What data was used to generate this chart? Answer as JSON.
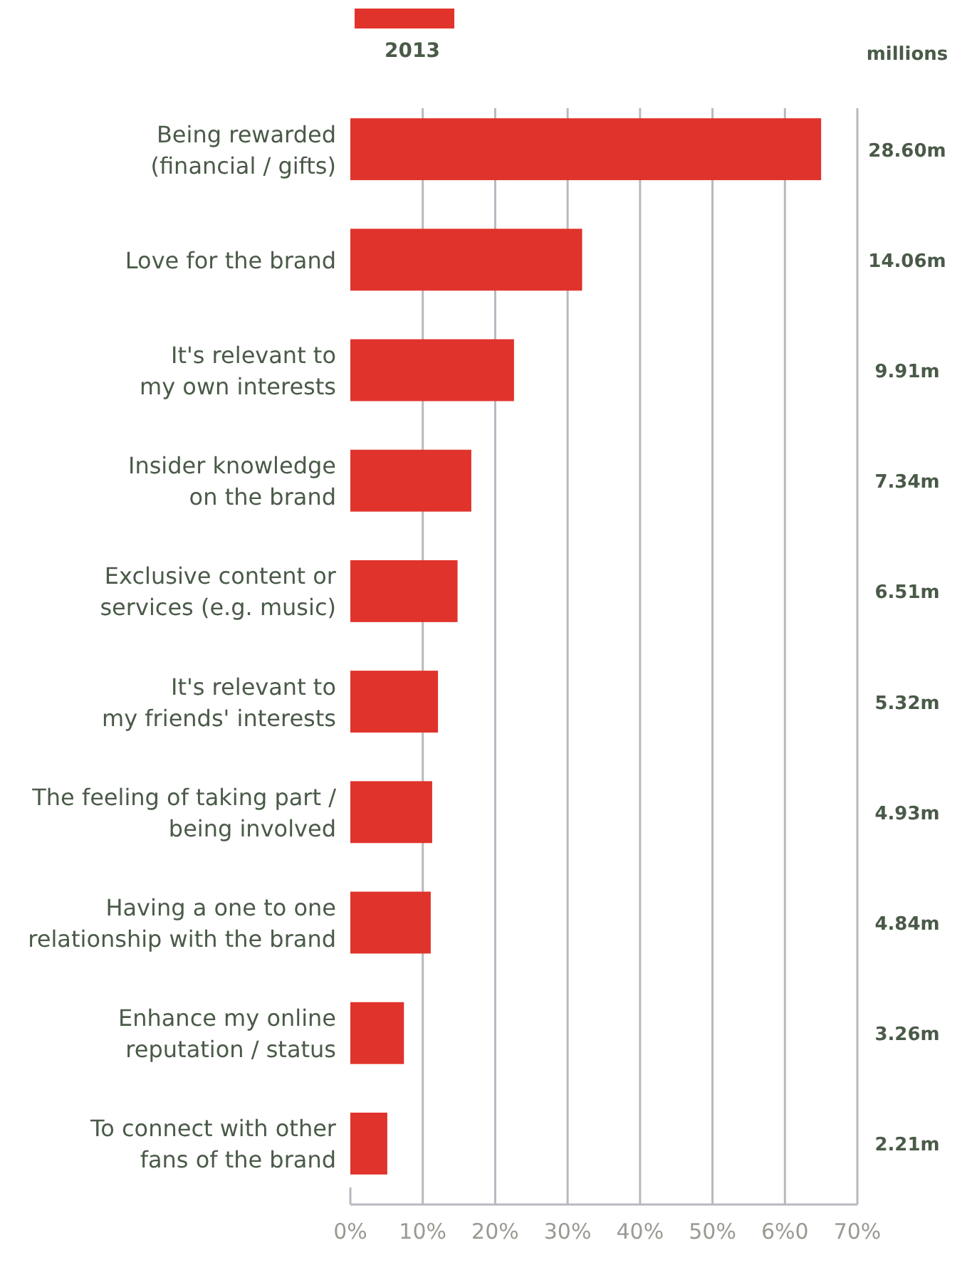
{
  "chart_data": {
    "type": "bar",
    "orientation": "horizontal",
    "categories": [
      "Being rewarded\n(financial / gifts)",
      "Love for the brand",
      "It's relevant to\nmy own interests",
      "Insider knowledge\non the brand",
      "Exclusive content or\nservices (e.g. music)",
      "It's relevant to\nmy friends' interests",
      "The feeling of taking part /\nbeing involved",
      "Having a one to one\nrelationship with the brand",
      "Enhance my online\nreputation / status",
      "To connect with other\nfans of the brand"
    ],
    "series": [
      {
        "name": "2013",
        "color": "#e0332b",
        "values": [
          65,
          32,
          22.6,
          16.7,
          14.8,
          12.1,
          11.3,
          11.1,
          7.4,
          5.1
        ]
      }
    ],
    "xlim": [
      0,
      70
    ],
    "xticks": [
      {
        "value": 0,
        "label": "0%"
      },
      {
        "value": 10,
        "label": "10%"
      },
      {
        "value": 20,
        "label": "20%"
      },
      {
        "value": 30,
        "label": "30%"
      },
      {
        "value": 40,
        "label": "40%"
      },
      {
        "value": 50,
        "label": "50%"
      },
      {
        "value": 60,
        "label": "6%0"
      },
      {
        "value": 70,
        "label": "70%"
      }
    ],
    "grid": "x",
    "legend": "top left",
    "annotations": [
      "millions",
      "28.60m",
      "14.06m",
      "9.91m",
      "7.34m",
      "6.51m",
      "5.32m",
      "4.93m",
      "4.84m",
      "3.26m",
      "2.21m"
    ]
  }
}
